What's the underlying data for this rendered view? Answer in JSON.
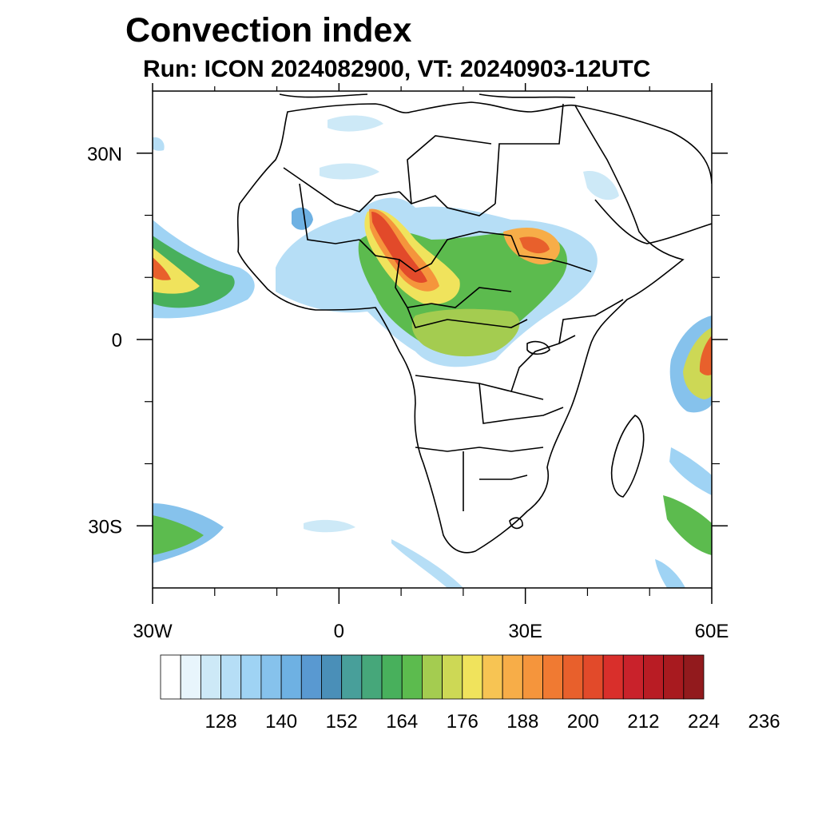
{
  "header": {
    "title": "Convection index",
    "subtitle": "Run: ICON 2024082900,  VT: 20240903-12UTC"
  },
  "map": {
    "lon_range": [
      -30,
      60
    ],
    "lat_range": [
      -40,
      40
    ],
    "lon_ticks": [
      {
        "lon": -30,
        "label": "30W"
      },
      {
        "lon": 0,
        "label": "0"
      },
      {
        "lon": 30,
        "label": "30E"
      },
      {
        "lon": 60,
        "label": "60E"
      }
    ],
    "lat_ticks": [
      {
        "lat": 30,
        "label": "30N"
      },
      {
        "lat": 0,
        "label": "0"
      },
      {
        "lat": -30,
        "label": "30S"
      }
    ],
    "minor_lon": [
      -20,
      -10,
      10,
      20,
      40,
      50
    ],
    "minor_lat": [
      20,
      10,
      -10,
      -20
    ]
  },
  "colorbar": {
    "labels": [
      "128",
      "140",
      "152",
      "164",
      "176",
      "188",
      "200",
      "212",
      "224",
      "236"
    ],
    "colors": [
      "#ffffff",
      "#e8f5fc",
      "#cde9f7",
      "#b6def6",
      "#9fd3f4",
      "#86c2ec",
      "#6eb1e3",
      "#5999d1",
      "#4a8fb8",
      "#489f9a",
      "#46a77a",
      "#48b05c",
      "#5cbb4e",
      "#a4cc50",
      "#cdd855",
      "#f0e35c",
      "#f7c453",
      "#f7ad48",
      "#f5953c",
      "#f07a32",
      "#e8602c",
      "#e24a2a",
      "#d92f2b",
      "#c9222b",
      "#b91c24",
      "#a81a1f",
      "#921a1d"
    ]
  }
}
